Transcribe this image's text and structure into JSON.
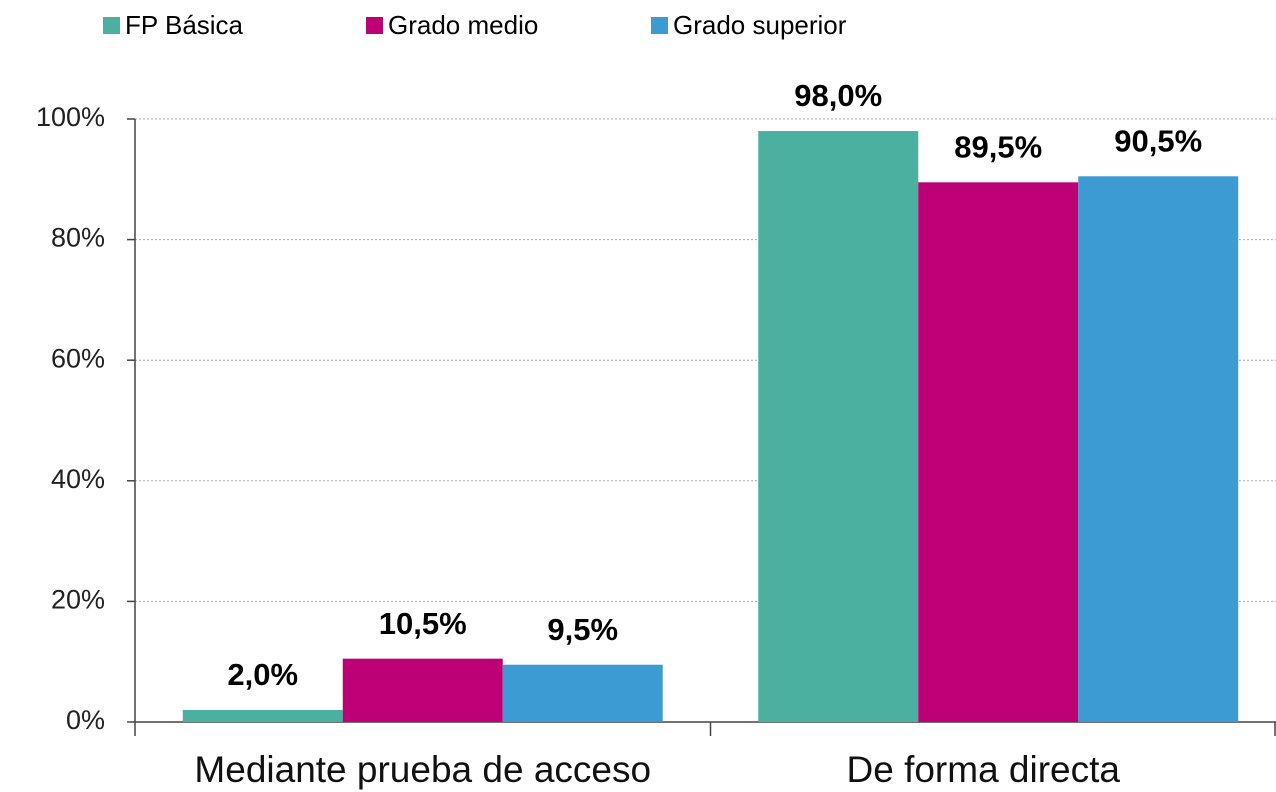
{
  "chart_data": {
    "type": "bar",
    "categories": [
      "Mediante prueba de acceso",
      "De forma directa"
    ],
    "series": [
      {
        "name": "FP Básica",
        "color": "#4bb09f",
        "values": [
          2.0,
          98.0
        ],
        "value_labels": [
          "2,0%",
          "98,0%"
        ]
      },
      {
        "name": "Grado medio",
        "color": "#be0077",
        "values": [
          10.5,
          89.5
        ],
        "value_labels": [
          "10,5%",
          "89,5%"
        ]
      },
      {
        "name": "Grado superior",
        "color": "#3d9bd3",
        "values": [
          9.5,
          90.5
        ],
        "value_labels": [
          "9,5%",
          "90,5%"
        ]
      }
    ],
    "ylim": [
      0,
      100
    ],
    "yticks": [
      {
        "value": 0,
        "label": "0%"
      },
      {
        "value": 20,
        "label": "20%"
      },
      {
        "value": 40,
        "label": "40%"
      },
      {
        "value": 60,
        "label": "60%"
      },
      {
        "value": 80,
        "label": "80%"
      },
      {
        "value": 100,
        "label": "100%"
      }
    ],
    "grid": true,
    "legend": "top"
  }
}
